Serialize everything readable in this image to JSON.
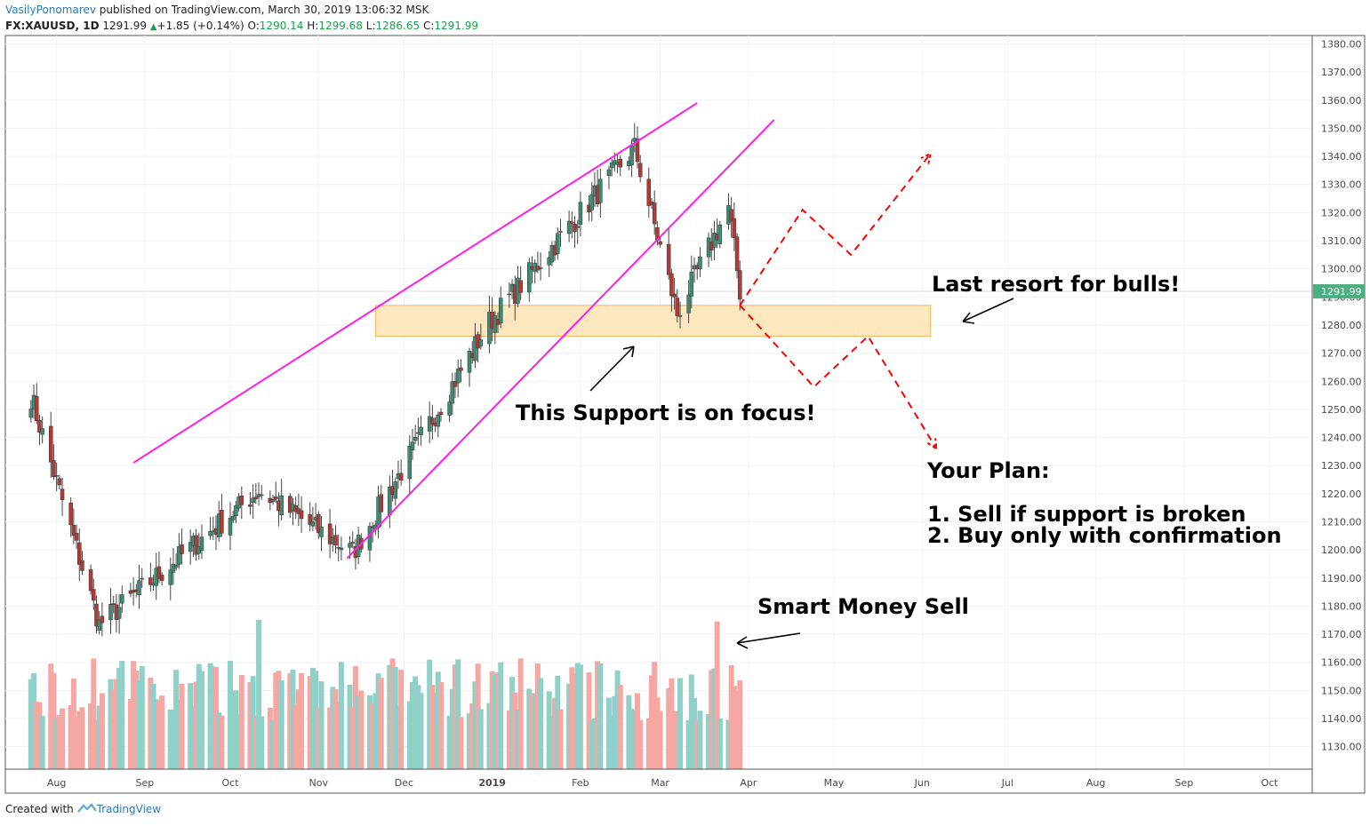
{
  "header": {
    "author": "VasilyPonomarev",
    "published": "published on TradingView.com, March 30, 2019 13:06:32 MSK",
    "symbol": "FX:XAUUSD, 1D",
    "last": "1291.99",
    "change": "+1.85 (+0.14%)",
    "o_label": "O:",
    "o_value": "1290.14",
    "h_label": "H:",
    "h_value": "1299.68",
    "l_label": "L:",
    "l_value": "1286.65",
    "c_label": "C:",
    "c_value": "1291.99"
  },
  "footer": {
    "created_with": "Created with",
    "brand": "TradingView"
  },
  "annotations": {
    "last_resort": "Last resort for bulls!",
    "support_focus": "This Support is on focus!",
    "plan_title": "Your Plan:",
    "plan_1": "1. Sell if support is broken",
    "plan_2": "2. Buy only with confirmation",
    "smart_money": "Smart Money Sell"
  },
  "colors": {
    "bull": "#3d8b75",
    "bear": "#b03b36",
    "vol_bull": "#8fd0c8",
    "vol_bear": "#f4a7a3",
    "channel": "#ff1ee6",
    "zone_fill": "#fde3b4",
    "zone_border": "#f7b45a",
    "scenario": "#ff0000",
    "price_label": "#4caf83"
  },
  "chart_data": {
    "type": "candlestick",
    "symbol": "FX:XAUUSD",
    "interval": "1D",
    "ylim": [
      1122,
      1383
    ],
    "y_ticks": [
      1130,
      1140,
      1150,
      1160,
      1170,
      1180,
      1190,
      1200,
      1210,
      1220,
      1230,
      1240,
      1250,
      1260,
      1270,
      1280,
      1290,
      1300,
      1310,
      1320,
      1330,
      1340,
      1350,
      1360,
      1370,
      1380
    ],
    "y_tick_labels": [
      "1130.00",
      "1140.00",
      "1150.00",
      "1160.00",
      "1170.00",
      "1180.00",
      "1190.00",
      "1200.00",
      "1210.00",
      "1220.00",
      "1230.00",
      "1240.00",
      "1250.00",
      "1260.00",
      "1270.00",
      "1280.00",
      "1290.00",
      "1300.00",
      "1310.00",
      "1320.00",
      "1330.00",
      "1340.00",
      "1350.00",
      "1360.00",
      "1370.00",
      "1380.00"
    ],
    "x_ticks": [
      {
        "label": "Aug",
        "day": -152
      },
      {
        "label": "Sep",
        "day": -121
      },
      {
        "label": "Oct",
        "day": -91
      },
      {
        "label": "Nov",
        "day": -60
      },
      {
        "label": "Dec",
        "day": -30
      },
      {
        "label": "2019",
        "day": 1,
        "bold": true
      },
      {
        "label": "Feb",
        "day": 32
      },
      {
        "label": "Mar",
        "day": 60
      },
      {
        "label": "Apr",
        "day": 91
      },
      {
        "label": "May",
        "day": 121
      },
      {
        "label": "Jun",
        "day": 152
      },
      {
        "label": "Jul",
        "day": 182
      },
      {
        "label": "Aug",
        "day": 213
      },
      {
        "label": "Sep",
        "day": 244
      },
      {
        "label": "Oct",
        "day": 274
      }
    ],
    "current_price": 1291.99,
    "current_price_label": "1291.99",
    "key_points": [
      {
        "date": "2018-08-16",
        "close": 1173.5
      },
      {
        "date": "2018-10-11",
        "close": 1221
      },
      {
        "date": "2018-11-13",
        "close": 1199
      },
      {
        "date": "2018-12-31",
        "close": 1281
      },
      {
        "date": "2019-02-20",
        "close": 1343
      },
      {
        "date": "2019-03-07",
        "close": 1284
      },
      {
        "date": "2019-03-25",
        "close": 1322
      },
      {
        "date": "2019-03-29",
        "close": 1291.99
      }
    ],
    "channel_lines": [
      {
        "from": {
          "day": -125,
          "price": 1231
        },
        "to": {
          "day": 73,
          "price": 1359
        }
      },
      {
        "from": {
          "day": -50,
          "price": 1197
        },
        "to": {
          "day": 100,
          "price": 1353
        }
      }
    ],
    "support_zone": {
      "from_day": -40,
      "to_day": 155,
      "low": 1276,
      "high": 1287
    },
    "scenario_up": [
      {
        "day": 88,
        "price": 1287
      },
      {
        "day": 110,
        "price": 1321
      },
      {
        "day": 127,
        "price": 1305
      },
      {
        "day": 155,
        "price": 1341
      }
    ],
    "scenario_down": [
      {
        "day": 88,
        "price": 1287
      },
      {
        "day": 114,
        "price": 1258
      },
      {
        "day": 133,
        "price": 1276
      },
      {
        "day": 157,
        "price": 1236
      }
    ]
  }
}
